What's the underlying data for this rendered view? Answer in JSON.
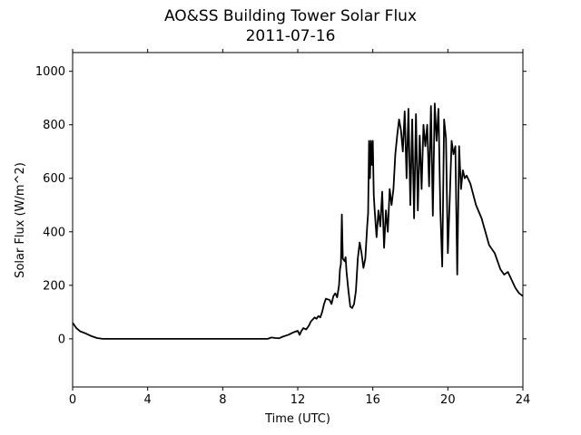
{
  "chart_data": {
    "type": "line",
    "title": "AO&SS Building Tower Solar Flux",
    "subtitle": "2011-07-16",
    "xlabel": "Time (UTC)",
    "ylabel": "Solar Flux (W/m^2)",
    "xlim": [
      0,
      24
    ],
    "ylim": [
      -180,
      1070
    ],
    "xticks": [
      0,
      4,
      8,
      12,
      16,
      20,
      24
    ],
    "yticks": [
      0,
      200,
      400,
      600,
      800,
      1000
    ],
    "grid": false,
    "line_color": "#000000",
    "series": [
      {
        "x": [
          0,
          0.2,
          0.4,
          0.7,
          1.0,
          1.3,
          1.6,
          2.0,
          4,
          6,
          8,
          9,
          10,
          10.4,
          10.6,
          10.8,
          11.0,
          11.2,
          11.5,
          11.8,
          12.0,
          12.1,
          12.2,
          12.3,
          12.45,
          12.6,
          12.7,
          12.9,
          13.0,
          13.1,
          13.2,
          13.3,
          13.4,
          13.5,
          13.7,
          13.8,
          13.9,
          14.0,
          14.1,
          14.2,
          14.25,
          14.3,
          14.35,
          14.4,
          14.5,
          14.55,
          14.6,
          14.7,
          14.8,
          14.9,
          15.0,
          15.1,
          15.2,
          15.3,
          15.4,
          15.5,
          15.6,
          15.7,
          15.75,
          15.8,
          15.85,
          15.9,
          15.95,
          16.0,
          16.05,
          16.1,
          16.2,
          16.3,
          16.4,
          16.5,
          16.6,
          16.7,
          16.8,
          16.9,
          17.0,
          17.1,
          17.2,
          17.3,
          17.4,
          17.5,
          17.6,
          17.7,
          17.8,
          17.9,
          18.0,
          18.1,
          18.2,
          18.3,
          18.4,
          18.5,
          18.6,
          18.7,
          18.8,
          18.9,
          19.0,
          19.1,
          19.2,
          19.3,
          19.4,
          19.5,
          19.6,
          19.7,
          19.8,
          19.9,
          20.0,
          20.1,
          20.2,
          20.3,
          20.4,
          20.5,
          20.6,
          20.7,
          20.8,
          20.9,
          21.0,
          21.2,
          21.5,
          21.8,
          22.0,
          22.2,
          22.5,
          22.8,
          23.0,
          23.2,
          23.4,
          23.6,
          23.8,
          24.0
        ],
        "y": [
          60,
          40,
          28,
          20,
          10,
          3,
          0,
          0,
          0,
          0,
          0,
          0,
          0,
          0,
          5,
          3,
          2,
          8,
          15,
          25,
          30,
          15,
          30,
          40,
          35,
          50,
          65,
          80,
          75,
          85,
          80,
          100,
          130,
          150,
          145,
          130,
          160,
          170,
          155,
          200,
          260,
          280,
          465,
          300,
          290,
          305,
          250,
          180,
          120,
          115,
          130,
          180,
          300,
          360,
          320,
          265,
          300,
          420,
          470,
          740,
          600,
          740,
          650,
          740,
          540,
          480,
          380,
          480,
          420,
          550,
          340,
          480,
          400,
          560,
          500,
          560,
          690,
          760,
          820,
          780,
          700,
          850,
          600,
          860,
          500,
          820,
          450,
          840,
          480,
          760,
          560,
          800,
          720,
          800,
          570,
          870,
          460,
          880,
          740,
          860,
          480,
          270,
          820,
          750,
          320,
          520,
          740,
          690,
          720,
          240,
          720,
          560,
          630,
          600,
          610,
          580,
          500,
          450,
          400,
          350,
          320,
          260,
          240,
          250,
          220,
          190,
          170,
          160
        ]
      }
    ]
  }
}
